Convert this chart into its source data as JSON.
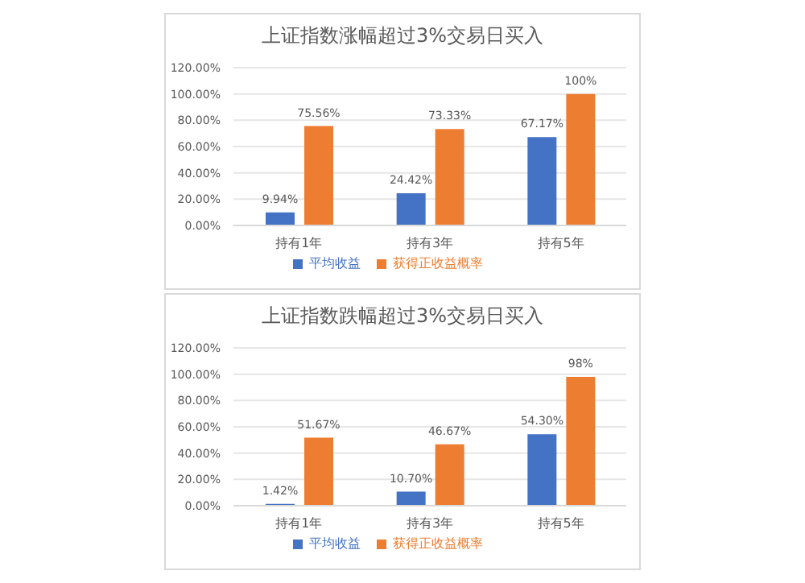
{
  "chart_data": [
    {
      "type": "bar",
      "title": "上证指数涨幅超过3%交易日买入",
      "categories": [
        "持有1年",
        "持有3年",
        "持有5年"
      ],
      "series": [
        {
          "name": "平均收益",
          "color": "#4472c4",
          "values": [
            9.94,
            24.42,
            67.17
          ],
          "value_labels": [
            "9.94%",
            "24.42%",
            "67.17%"
          ]
        },
        {
          "name": "获得正收益概率",
          "color": "#ed7d31",
          "values": [
            75.56,
            73.33,
            100
          ],
          "value_labels": [
            "75.56%",
            "73.33%",
            "100%"
          ]
        }
      ],
      "ylim": [
        0,
        120
      ],
      "yticks": [
        {
          "value": 0,
          "label": "0.00%"
        },
        {
          "value": 20,
          "label": "20.00%"
        },
        {
          "value": 40,
          "label": "40.00%"
        },
        {
          "value": 60,
          "label": "60.00%"
        },
        {
          "value": 80,
          "label": "80.00%"
        },
        {
          "value": 100,
          "label": "100.00%"
        },
        {
          "value": 120,
          "label": "120.00%"
        }
      ],
      "grid": "y",
      "legend": "bottom"
    },
    {
      "type": "bar",
      "title": "上证指数跌幅超过3%交易日买入",
      "categories": [
        "持有1年",
        "持有3年",
        "持有5年"
      ],
      "series": [
        {
          "name": "平均收益",
          "color": "#4472c4",
          "values": [
            1.42,
            10.7,
            54.3
          ],
          "value_labels": [
            "1.42%",
            "10.70%",
            "54.30%"
          ]
        },
        {
          "name": "获得正收益概率",
          "color": "#ed7d31",
          "values": [
            51.67,
            46.67,
            98
          ],
          "value_labels": [
            "51.67%",
            "46.67%",
            "98%"
          ]
        }
      ],
      "ylim": [
        0,
        120
      ],
      "yticks": [
        {
          "value": 0,
          "label": "0.00%"
        },
        {
          "value": 20,
          "label": "20.00%"
        },
        {
          "value": 40,
          "label": "40.00%"
        },
        {
          "value": 60,
          "label": "60.00%"
        },
        {
          "value": 80,
          "label": "80.00%"
        },
        {
          "value": 100,
          "label": "100.00%"
        },
        {
          "value": 120,
          "label": "120.00%"
        }
      ],
      "grid": "y",
      "legend": "bottom"
    }
  ]
}
